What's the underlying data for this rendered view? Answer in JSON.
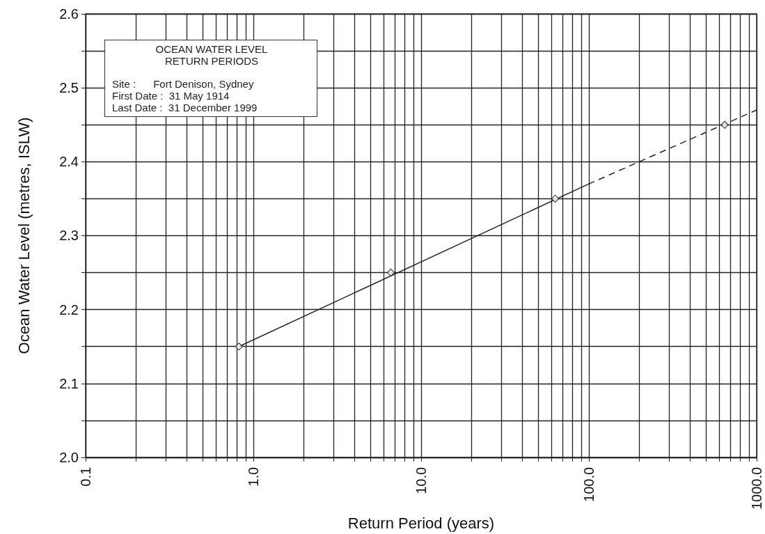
{
  "chart_data": {
    "type": "line",
    "xlabel": "Return Period (years)",
    "ylabel": "Ocean Water Level (metres, ISLW)",
    "annotations": [
      "OCEAN WATER LEVEL",
      "RETURN PERIODS",
      "Site :      Fort Denison, Sydney",
      "First Date :  31 May 1914",
      "Last Date :  31 December 1999"
    ],
    "series": [
      {
        "type": "scatter",
        "color": "#222222",
        "marker": "diamond",
        "x": [
          0.82,
          6.6,
          63,
          645
        ],
        "values": [
          2.15,
          2.25,
          2.35,
          2.45
        ]
      },
      {
        "color": "#222222",
        "marker": "none",
        "line_style": "solid",
        "x": [
          0.82,
          100
        ],
        "values": [
          2.15,
          2.37
        ]
      },
      {
        "color": "#222222",
        "marker": "none",
        "line_style": "dashed",
        "x": [
          100,
          1000
        ],
        "values": [
          2.37,
          2.47
        ]
      }
    ],
    "log": "x",
    "xlim": [
      0.1,
      1000
    ],
    "xticks": [
      0.1,
      {
        "value": 0.2,
        "label": null
      },
      {
        "value": 0.3,
        "label": null
      },
      {
        "value": 0.4,
        "label": null
      },
      {
        "value": 0.5,
        "label": null
      },
      {
        "value": 0.6,
        "label": null
      },
      {
        "value": 0.7,
        "label": null
      },
      {
        "value": 0.8,
        "label": null
      },
      {
        "value": 0.9,
        "label": null
      },
      {
        "value": 1,
        "label": "1.0"
      },
      {
        "value": 2,
        "label": null
      },
      {
        "value": 3,
        "label": null
      },
      {
        "value": 4,
        "label": null
      },
      {
        "value": 5,
        "label": null
      },
      {
        "value": 6,
        "label": null
      },
      {
        "value": 7,
        "label": null
      },
      {
        "value": 8,
        "label": null
      },
      {
        "value": 9,
        "label": null
      },
      {
        "value": 10,
        "label": "10.0"
      },
      {
        "value": 20,
        "label": null
      },
      {
        "value": 30,
        "label": null
      },
      {
        "value": 40,
        "label": null
      },
      {
        "value": 50,
        "label": null
      },
      {
        "value": 60,
        "label": null
      },
      {
        "value": 70,
        "label": null
      },
      {
        "value": 80,
        "label": null
      },
      {
        "value": 90,
        "label": null
      },
      {
        "value": 100,
        "label": "100.0"
      },
      {
        "value": 200,
        "label": null
      },
      {
        "value": 300,
        "label": null
      },
      {
        "value": 400,
        "label": null
      },
      {
        "value": 500,
        "label": null
      },
      {
        "value": 600,
        "label": null
      },
      {
        "value": 700,
        "label": null
      },
      {
        "value": 800,
        "label": null
      },
      {
        "value": 900,
        "label": null
      },
      {
        "value": 1000,
        "label": "1000.0"
      }
    ],
    "ylim": [
      2.0,
      2.6
    ],
    "yticks": [
      {
        "value": 2.0,
        "label": "2.0"
      },
      {
        "value": 2.05,
        "label": null
      },
      2.1,
      {
        "value": 2.15,
        "label": null
      },
      2.2,
      {
        "value": 2.25,
        "label": null
      },
      2.3,
      {
        "value": 2.35,
        "label": null
      },
      2.4,
      {
        "value": 2.45,
        "label": null
      },
      2.5,
      {
        "value": 2.55,
        "label": null
      },
      2.6
    ],
    "grid": true
  }
}
